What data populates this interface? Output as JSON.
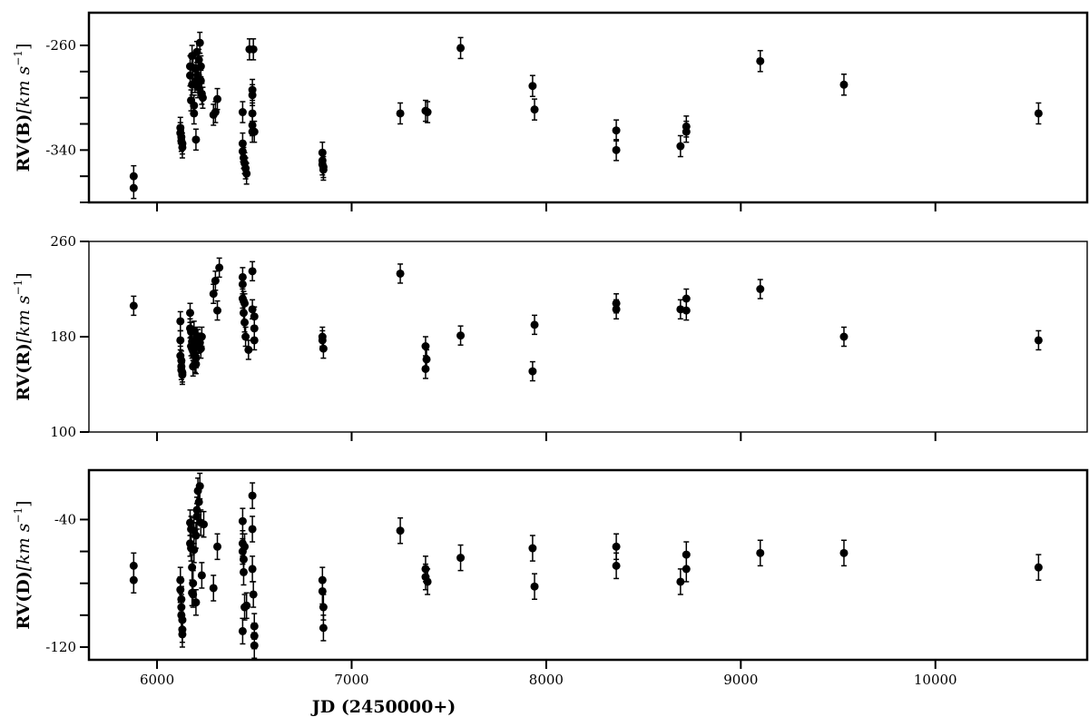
{
  "chart_data": [
    {
      "type": "scatter",
      "panel": "top",
      "ylabel_main": "RV(B)",
      "ylabel_unit": "[km s",
      "ylabel_sup": "−1",
      "ylabel_close": "]",
      "xlim": [
        5650,
        10780
      ],
      "ylim": [
        -380,
        -235
      ],
      "yticks": [
        -260,
        -340
      ],
      "yticks_minor": [
        -280,
        -300,
        -320,
        -360,
        -380
      ],
      "series": [
        {
          "x": [
            5880,
            5880,
            6120,
            6120,
            6125,
            6125,
            6130,
            6130,
            6170,
            6170,
            6175,
            6180,
            6180,
            6185,
            6190,
            6190,
            6195,
            6200,
            6200,
            6205,
            6210,
            6210,
            6215,
            6220,
            6225,
            6225,
            6230,
            6235,
            6290,
            6300,
            6310,
            6440,
            6440,
            6440,
            6445,
            6450,
            6455,
            6460,
            6475,
            6490,
            6490,
            6490,
            6490,
            6490,
            6495,
            6500,
            6850,
            6850,
            6850,
            6855,
            6855,
            7250,
            7380,
            7390,
            7560,
            7930,
            7940,
            8360,
            8360,
            8690,
            8720,
            8720,
            9100,
            9530,
            10530
          ],
          "y": [
            -360,
            -369,
            -323,
            -327,
            -330,
            -333,
            -335,
            -338,
            -276,
            -283,
            -302,
            -268,
            -290,
            -277,
            -306,
            -312,
            -288,
            -278,
            -332,
            -265,
            -283,
            -292,
            -271,
            -258,
            -276,
            -287,
            -297,
            -300,
            -313,
            -311,
            -301,
            -311,
            -335,
            -341,
            -346,
            -350,
            -354,
            -358,
            -263,
            -294,
            -298,
            -312,
            -321,
            -326,
            -263,
            -326,
            -342,
            -348,
            -351,
            -353,
            -355,
            -312,
            -310,
            -311,
            -262,
            -291,
            -309,
            -325,
            -340,
            -337,
            -326,
            -322,
            -272,
            -290,
            -312
          ],
          "err": [
            8,
            8,
            8,
            8,
            8,
            8,
            8,
            8,
            8,
            8,
            8,
            8,
            8,
            8,
            8,
            8,
            8,
            8,
            8,
            8,
            8,
            8,
            8,
            8,
            8,
            8,
            8,
            8,
            8,
            8,
            8,
            8,
            8,
            8,
            8,
            8,
            8,
            8,
            8,
            8,
            8,
            8,
            8,
            8,
            8,
            8,
            8,
            8,
            8,
            8,
            8,
            8,
            8,
            8,
            8,
            8,
            8,
            8,
            8,
            8,
            8,
            8,
            8,
            8,
            8
          ]
        }
      ]
    },
    {
      "type": "scatter",
      "panel": "middle",
      "ylabel_main": "RV(R)",
      "ylabel_unit": "[km s",
      "ylabel_sup": "−1",
      "ylabel_close": "]",
      "xlim": [
        5650,
        10780
      ],
      "ylim": [
        100,
        260
      ],
      "yticks": [
        260,
        180,
        100
      ],
      "yticks_minor": [],
      "series": [
        {
          "x": [
            5880,
            6120,
            6120,
            6120,
            6125,
            6125,
            6125,
            6130,
            6130,
            6170,
            6170,
            6175,
            6175,
            6180,
            6180,
            6185,
            6185,
            6190,
            6190,
            6195,
            6200,
            6200,
            6205,
            6205,
            6210,
            6215,
            6220,
            6225,
            6230,
            6290,
            6300,
            6310,
            6320,
            6440,
            6440,
            6440,
            6445,
            6445,
            6450,
            6450,
            6455,
            6470,
            6490,
            6490,
            6500,
            6500,
            6500,
            6850,
            6850,
            6855,
            7250,
            7380,
            7380,
            7385,
            7560,
            7930,
            7940,
            8360,
            8360,
            8690,
            8720,
            8720,
            9100,
            9530,
            10530
          ],
          "y": [
            206,
            193,
            177,
            164,
            160,
            155,
            152,
            150,
            148,
            200,
            187,
            184,
            172,
            176,
            170,
            168,
            155,
            185,
            165,
            158,
            162,
            157,
            172,
            180,
            178,
            174,
            175,
            170,
            180,
            216,
            227,
            202,
            238,
            230,
            224,
            212,
            210,
            200,
            208,
            192,
            180,
            169,
            235,
            203,
            197,
            187,
            177,
            180,
            177,
            170,
            233,
            153,
            172,
            161,
            181,
            151,
            190,
            208,
            203,
            203,
            212,
            202,
            220,
            180,
            177
          ],
          "err": [
            8,
            8,
            8,
            8,
            8,
            8,
            8,
            8,
            8,
            8,
            8,
            8,
            8,
            8,
            8,
            8,
            8,
            8,
            8,
            8,
            8,
            8,
            8,
            8,
            8,
            8,
            8,
            8,
            8,
            8,
            8,
            8,
            8,
            8,
            8,
            8,
            8,
            8,
            8,
            8,
            8,
            8,
            8,
            8,
            8,
            8,
            8,
            8,
            8,
            8,
            8,
            8,
            8,
            8,
            8,
            8,
            8,
            8,
            8,
            8,
            8,
            8,
            8,
            8,
            8
          ]
        }
      ]
    },
    {
      "type": "scatter",
      "panel": "bottom",
      "ylabel_main": "RV(D)",
      "ylabel_unit": "[km s",
      "ylabel_sup": "−1",
      "ylabel_close": "]",
      "xlim": [
        5650,
        10780
      ],
      "ylim": [
        -128,
        -9
      ],
      "yticks": [
        -40,
        -120
      ],
      "yticks_minor": [
        -60,
        -80,
        -100
      ],
      "series": [
        {
          "x": [
            5880,
            5880,
            6120,
            6120,
            6125,
            6125,
            6125,
            6130,
            6130,
            6130,
            6170,
            6170,
            6175,
            6175,
            6180,
            6180,
            6185,
            6185,
            6190,
            6190,
            6200,
            6200,
            6205,
            6205,
            6210,
            6215,
            6220,
            6225,
            6230,
            6240,
            6290,
            6310,
            6440,
            6440,
            6440,
            6440,
            6445,
            6445,
            6450,
            6450,
            6460,
            6490,
            6490,
            6490,
            6495,
            6500,
            6500,
            6500,
            6850,
            6850,
            6855,
            6855,
            7250,
            7380,
            7380,
            7390,
            7560,
            7930,
            7940,
            8360,
            8360,
            8690,
            8720,
            8720,
            9100,
            9530,
            10530
          ],
          "y": [
            -69,
            -78,
            -78,
            -84,
            -90,
            -95,
            -100,
            -103,
            -109,
            -112,
            -42,
            -55,
            -46,
            -58,
            -70,
            -86,
            -80,
            -87,
            -47,
            -59,
            -92,
            -50,
            -38,
            -34,
            -22,
            -29,
            -19,
            -42,
            -75,
            -43,
            -83,
            -57,
            -110,
            -41,
            -55,
            -60,
            -65,
            -73,
            -95,
            -57,
            -94,
            -25,
            -46,
            -71,
            -87,
            -107,
            -119,
            -113,
            -78,
            -85,
            -95,
            -108,
            -47,
            -71,
            -76,
            -79,
            -64,
            -58,
            -82,
            -57,
            -69,
            -79,
            -71,
            -62,
            -61,
            -61,
            -70
          ],
          "err": [
            8,
            8,
            8,
            8,
            8,
            8,
            8,
            8,
            8,
            8,
            8,
            8,
            8,
            8,
            8,
            8,
            8,
            8,
            8,
            8,
            8,
            8,
            8,
            8,
            8,
            8,
            8,
            8,
            8,
            8,
            8,
            8,
            8,
            8,
            8,
            8,
            8,
            8,
            8,
            8,
            8,
            8,
            8,
            8,
            8,
            8,
            8,
            8,
            8,
            8,
            8,
            8,
            8,
            8,
            8,
            8,
            8,
            8,
            8,
            8,
            8,
            8,
            8,
            8,
            8,
            8,
            8
          ]
        }
      ]
    }
  ],
  "xaxis": {
    "label": "JD (2450000+)",
    "ticks": [
      6000,
      7000,
      8000,
      9000,
      10000
    ]
  },
  "colors": {
    "marker": "#000000",
    "axes": "#000000",
    "background": "#ffffff"
  }
}
